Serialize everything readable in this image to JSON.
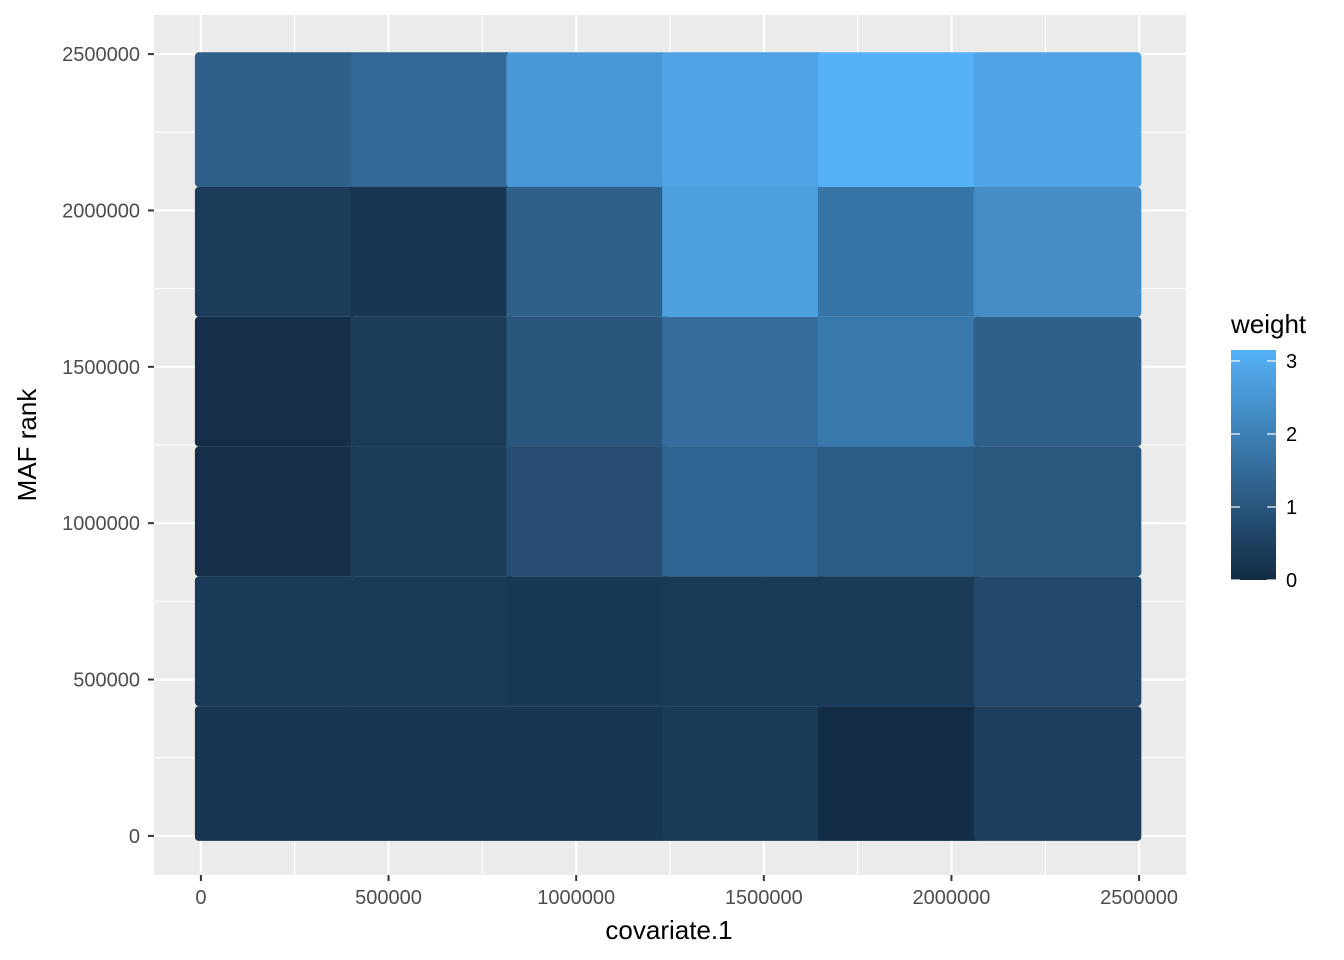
{
  "chart_data": {
    "type": "heatmap",
    "title": "",
    "xlabel": "covariate.1",
    "ylabel": "MAF rank",
    "xlim": [
      -125000,
      2625000
    ],
    "ylim": [
      -125000,
      2625000
    ],
    "x_ticks": [
      0,
      500000,
      1000000,
      1500000,
      2000000,
      2500000
    ],
    "x_tick_labels": [
      "0",
      "500000",
      "1000000",
      "1500000",
      "2000000",
      "2500000"
    ],
    "y_ticks": [
      0,
      500000,
      1000000,
      1500000,
      2000000,
      2500000
    ],
    "y_tick_labels": [
      "0",
      "500000",
      "1000000",
      "1500000",
      "2000000",
      "2500000"
    ],
    "grid": true,
    "x_bins": [
      [
        0,
        415000
      ],
      [
        415000,
        830000
      ],
      [
        830000,
        1245000
      ],
      [
        1245000,
        1660000
      ],
      [
        1660000,
        2075000
      ],
      [
        2075000,
        2490000
      ]
    ],
    "y_bins": [
      [
        0,
        415000
      ],
      [
        415000,
        830000
      ],
      [
        830000,
        1245000
      ],
      [
        1245000,
        1660000
      ],
      [
        1660000,
        2075000
      ],
      [
        2075000,
        2490000
      ]
    ],
    "weights": [
      [
        0.25,
        0.25,
        0.25,
        0.35,
        0.05,
        0.45
      ],
      [
        0.35,
        0.35,
        0.3,
        0.35,
        0.35,
        0.7
      ],
      [
        0.1,
        0.4,
        0.8,
        1.35,
        1.15,
        1.05
      ],
      [
        0.1,
        0.4,
        1.0,
        1.55,
        1.8,
        1.25
      ],
      [
        0.4,
        0.25,
        1.25,
        2.75,
        1.75,
        2.3
      ],
      [
        1.25,
        1.45,
        2.55,
        2.85,
        3.15,
        2.85
      ]
    ],
    "legend": {
      "title": "weight",
      "ticks": [
        0,
        1,
        2,
        3
      ],
      "tick_labels": [
        "0",
        "1",
        "2",
        "3"
      ],
      "range": [
        0,
        3.15
      ],
      "low_color": "#132B43",
      "high_color": "#56B1F7",
      "placement": "right"
    },
    "colors": {
      "panel_background": "#EBEBEB",
      "grid_major": "#FFFFFF",
      "tick_label": "#4D4D4D"
    }
  }
}
